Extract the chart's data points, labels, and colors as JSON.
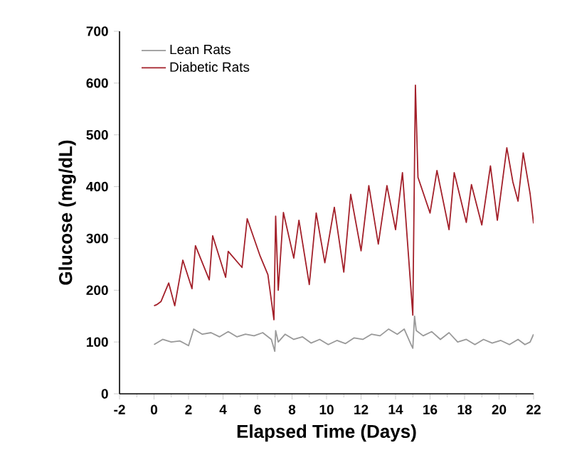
{
  "chart_data": {
    "type": "line",
    "xlabel": "Elapsed Time (Days)",
    "ylabel": "Glucose (mg/dL)",
    "xlim": [
      -2,
      22
    ],
    "xticks": [
      -2,
      0,
      2,
      4,
      6,
      8,
      10,
      12,
      14,
      16,
      18,
      20,
      22
    ],
    "ylim": [
      0,
      700
    ],
    "yticks": [
      0,
      100,
      200,
      300,
      400,
      500,
      600,
      700
    ],
    "grid": false,
    "legend": "top left",
    "marker": "none",
    "line_style": "solid",
    "series": [
      {
        "name": "Lean Rats",
        "color": "#999999",
        "x": [
          0,
          0.5,
          1,
          1.5,
          2,
          2.3,
          2.8,
          3.3,
          3.8,
          4.3,
          4.8,
          5.3,
          5.8,
          6.3,
          6.8,
          7.0,
          7.05,
          7.2,
          7.6,
          8.1,
          8.6,
          9.1,
          9.6,
          10.1,
          10.6,
          11.1,
          11.6,
          12.1,
          12.6,
          13.1,
          13.6,
          14.1,
          14.5,
          14.9,
          15.0,
          15.1,
          15.2,
          15.6,
          16.1,
          16.6,
          17.1,
          17.6,
          18.1,
          18.6,
          19.1,
          19.6,
          20.1,
          20.6,
          21.1,
          21.5,
          21.8,
          22.0
        ],
        "values": [
          95,
          105,
          100,
          102,
          93,
          125,
          115,
          118,
          110,
          120,
          110,
          115,
          112,
          118,
          105,
          82,
          122,
          100,
          115,
          105,
          110,
          98,
          105,
          95,
          103,
          97,
          108,
          105,
          115,
          112,
          125,
          115,
          125,
          95,
          88,
          150,
          122,
          112,
          120,
          105,
          118,
          100,
          105,
          95,
          105,
          98,
          103,
          95,
          105,
          95,
          100,
          115
        ]
      },
      {
        "name": "Diabetic Rats",
        "color": "#a3202a",
        "x": [
          0,
          0.15,
          0.4,
          0.85,
          1.2,
          1.67,
          2.2,
          2.4,
          3.2,
          3.4,
          4.15,
          4.3,
          5.1,
          5.4,
          6.15,
          6.6,
          6.95,
          7.05,
          7.2,
          7.5,
          8.1,
          8.4,
          9.0,
          9.4,
          9.9,
          10.45,
          11.0,
          11.4,
          12.0,
          12.45,
          13.0,
          13.5,
          14.0,
          14.4,
          15.0,
          15.15,
          15.3,
          16.0,
          16.4,
          17.1,
          17.4,
          18.1,
          18.4,
          19.0,
          19.5,
          19.9,
          20.45,
          20.8,
          21.1,
          21.4,
          21.8,
          22.0
        ],
        "values": [
          170,
          172,
          178,
          214,
          170,
          258,
          203,
          286,
          220,
          305,
          225,
          275,
          244,
          338,
          266,
          230,
          143,
          343,
          200,
          350,
          262,
          335,
          211,
          349,
          253,
          360,
          235,
          385,
          276,
          402,
          289,
          402,
          317,
          427,
          152,
          596,
          418,
          349,
          431,
          317,
          427,
          331,
          404,
          326,
          440,
          335,
          475,
          409,
          372,
          465,
          386,
          329
        ]
      }
    ]
  }
}
